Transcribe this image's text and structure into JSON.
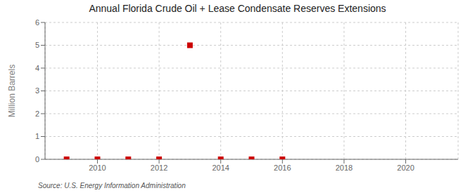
{
  "chart_data": {
    "type": "scatter",
    "title": "Annual Florida Crude Oil + Lease Condensate Reserves Extensions",
    "y_label": "Million Barrels",
    "annotations": [
      "Source: U.S. Energy Information Administration"
    ],
    "x": [
      2009,
      2010,
      2011,
      2012,
      2013,
      2014,
      2015,
      2016
    ],
    "values": [
      0.0,
      0.0,
      0.0,
      0.0,
      5.0,
      0.0,
      0.0,
      0.0
    ],
    "color": "#cc0000",
    "marker": "square",
    "xlim": [
      2008.3,
      2021.7
    ],
    "ylim": [
      0,
      6
    ],
    "xticks": [
      2010,
      2012,
      2014,
      2016,
      2018,
      2020
    ],
    "yticks": [
      0,
      1,
      2,
      3,
      4,
      5,
      6
    ],
    "grid": true
  }
}
